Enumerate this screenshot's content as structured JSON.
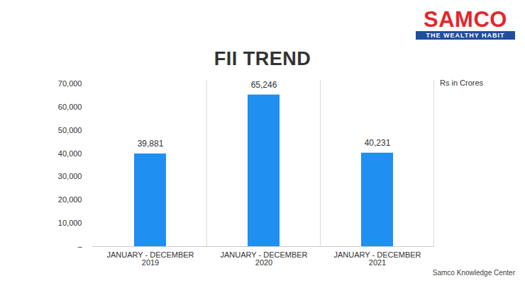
{
  "chart_data": {
    "type": "bar",
    "title": "FII TREND",
    "annotation": "Rs in Crores",
    "logo": {
      "text": "SAMCO",
      "tagline": "THE WEALTHY HABIT"
    },
    "source": "Samco Knowledge Center",
    "categories": [
      "JANUARY - DECEMBER\n2019",
      "JANUARY - DECEMBER\n2020",
      "JANUARY - DECEMBER\n2021"
    ],
    "values": [
      39881,
      65246,
      40231
    ],
    "value_labels": [
      "39,881",
      "65,246",
      "40,231"
    ],
    "data_labels": true,
    "color": "#1f8ff2",
    "ylim": [
      0,
      70000
    ],
    "yticks": [
      {
        "value": 0,
        "label": "–"
      },
      {
        "value": 10000,
        "label": "10,000"
      },
      {
        "value": 20000,
        "label": "20,000"
      },
      {
        "value": 30000,
        "label": "30,000"
      },
      {
        "value": 40000,
        "label": "40,000"
      },
      {
        "value": 50000,
        "label": "50,000"
      },
      {
        "value": 60000,
        "label": "60,000"
      },
      {
        "value": 70000,
        "label": "70,000"
      }
    ],
    "grid": false
  }
}
